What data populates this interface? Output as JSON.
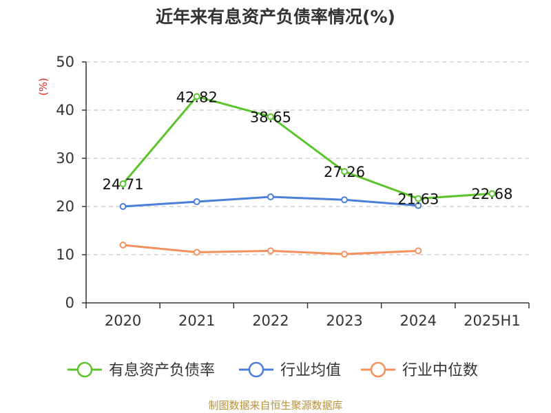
{
  "chart_data": {
    "type": "line",
    "title": "近年来有息资产负债率情况(%)",
    "ylabel": "(%)",
    "ylim": [
      0,
      50
    ],
    "yticks": [
      0,
      10,
      20,
      30,
      40,
      50
    ],
    "categories": [
      "2020",
      "2021",
      "2022",
      "2023",
      "2024",
      "2025H1"
    ],
    "grid": true,
    "legend_position": "bottom",
    "series": [
      {
        "name": "有息资产负债率",
        "color": "#5ac42a",
        "values": [
          24.71,
          42.82,
          38.65,
          27.26,
          21.63,
          22.68
        ],
        "labels": [
          "24.71",
          "42.82",
          "38.65",
          "27.26",
          "21.63",
          "22.68"
        ]
      },
      {
        "name": "行业均值",
        "color": "#4a7fdb",
        "values": [
          20.0,
          21.0,
          22.0,
          21.4,
          20.2,
          null
        ]
      },
      {
        "name": "行业中位数",
        "color": "#f5905c",
        "values": [
          12.0,
          10.5,
          10.8,
          10.1,
          10.8,
          null
        ]
      }
    ],
    "source": "制图数据来自恒生聚源数据库"
  }
}
